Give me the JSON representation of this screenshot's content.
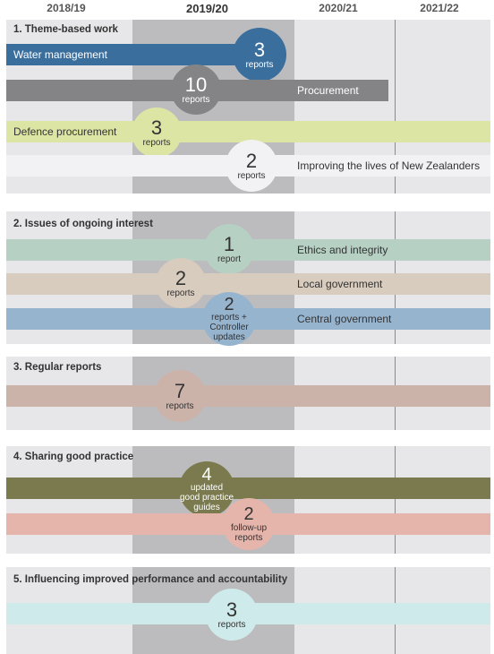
{
  "years": [
    "2018/19",
    "2019/20",
    "2020/21",
    "2021/22"
  ],
  "sections": [
    {
      "title": "1. Theme-based work",
      "items": [
        {
          "label": "Water management",
          "count": "3",
          "note": "reports",
          "color": "#3a6e9c"
        },
        {
          "label": "Procurement",
          "count": "10",
          "note": "reports",
          "color": "#848486"
        },
        {
          "label": "Defence procurement",
          "count": "3",
          "note": "reports",
          "color": "#dde5a4"
        },
        {
          "label": "Improving the lives of New Zealanders",
          "count": "2",
          "note": "reports",
          "color": "#f2f1f4"
        }
      ]
    },
    {
      "title": "2. Issues of ongoing interest",
      "items": [
        {
          "label": "Ethics and integrity",
          "count": "1",
          "note": "report",
          "color": "#b6d0c4"
        },
        {
          "label": "Local government",
          "count": "2",
          "note": "reports",
          "color": "#d8ccbe"
        },
        {
          "label": "Central government",
          "count": "2",
          "note": "reports +\nController\nupdates",
          "color": "#97b4cf"
        }
      ]
    },
    {
      "title": "3. Regular reports",
      "items": [
        {
          "label": "",
          "count": "7",
          "note": "reports",
          "color": "#cbb3a9"
        }
      ]
    },
    {
      "title": "4. Sharing good practice",
      "items": [
        {
          "label": "",
          "count": "4",
          "note": "updated\ngood practice\nguides",
          "color": "#7a7a4e"
        },
        {
          "label": "",
          "count": "2",
          "note": "follow-up\nreports",
          "color": "#e5b5ab"
        }
      ]
    },
    {
      "title": "5. Influencing improved performance and accountability",
      "items": [
        {
          "label": "",
          "count": "3",
          "note": "reports",
          "color": "#cfeaea"
        }
      ]
    }
  ]
}
